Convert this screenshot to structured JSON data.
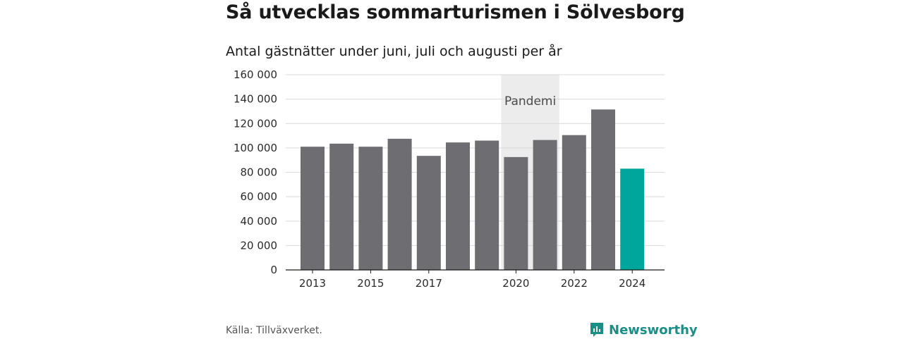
{
  "header": {
    "title": "Så utvecklas sommarturismen i Sölvesborg",
    "subtitle": "Antal gästnätter under juni, juli och augusti per år"
  },
  "footer": {
    "source": "Källa: Tillväxverket.",
    "brand": "Newsworthy",
    "brand_color": "#1a8f86"
  },
  "chart_data": {
    "type": "bar",
    "categories": [
      "2013",
      "2014",
      "2015",
      "2016",
      "2017",
      "2018",
      "2019",
      "2020",
      "2021",
      "2022",
      "2023",
      "2024"
    ],
    "values": [
      101000,
      103500,
      101000,
      107500,
      93500,
      104500,
      106000,
      92500,
      106500,
      110500,
      131500,
      83000
    ],
    "x_tick_labels": [
      "2013",
      "",
      "2015",
      "",
      "2017",
      "",
      "",
      "2020",
      "",
      "2022",
      "",
      "2024"
    ],
    "y_ticks": [
      0,
      20000,
      40000,
      60000,
      80000,
      100000,
      120000,
      140000,
      160000
    ],
    "y_tick_labels": [
      "0",
      "20 000",
      "40 000",
      "60 000",
      "80 000",
      "100 000",
      "120 000",
      "140 000",
      "160 000"
    ],
    "ylim": [
      0,
      160000
    ],
    "grid": true,
    "bar_color": "#6e6d72",
    "highlight_color": "#00a69c",
    "highlight_categories": [
      "2024"
    ],
    "annotation": {
      "label": "Pandemi",
      "from": "2020",
      "to": "2021",
      "color": "#ececec"
    }
  }
}
